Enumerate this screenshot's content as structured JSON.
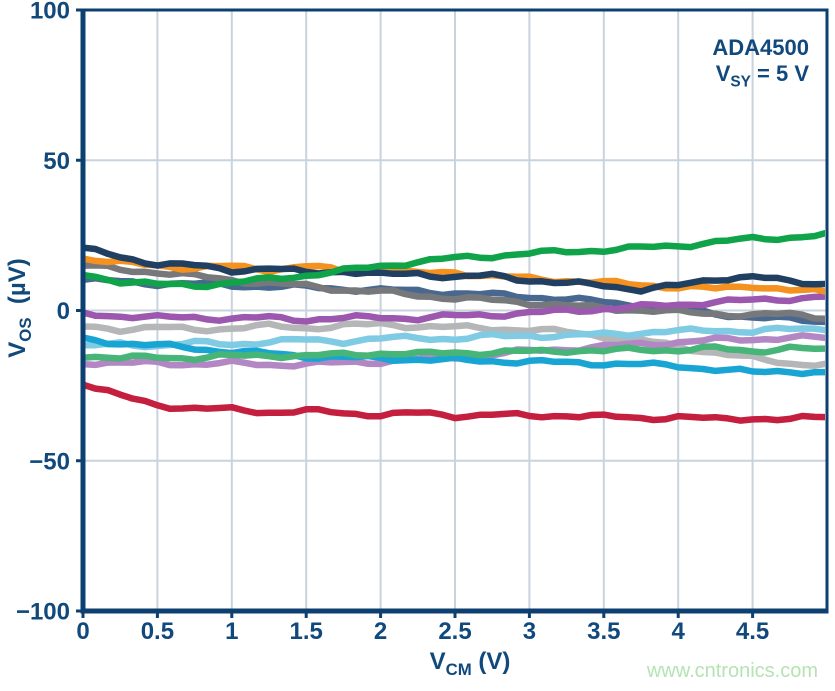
{
  "annotation": {
    "line1": "ADA4500",
    "line2_main": "V",
    "line2_sub": "SY",
    "line2_rest": " = 5 V"
  },
  "watermark": {
    "text": "www.cntronics.com",
    "color": "#b5e3b2"
  },
  "colors": {
    "axis": "#0d3f70",
    "text": "#11497c",
    "grid": "#c8d3de",
    "background": "#ffffff"
  },
  "axes": {
    "x": {
      "label_main": "V",
      "label_sub": "CM",
      "label_rest": " (V)",
      "min": 0,
      "max": 5,
      "tick_values": [
        0,
        0.5,
        1,
        1.5,
        2,
        2.5,
        3,
        3.5,
        4,
        4.5
      ],
      "tick_labels": [
        "0",
        "0.5",
        "1",
        "1.5",
        "2",
        "2.5",
        "3",
        "3.5",
        "4",
        "4.5"
      ],
      "gridline_values": [
        0.5,
        1,
        1.5,
        2,
        2.5,
        3,
        3.5,
        4,
        4.5
      ]
    },
    "y": {
      "label_main": "V",
      "label_sub": "OS",
      "label_rest": " (µV)",
      "min": -100,
      "max": 100,
      "tick_values": [
        100,
        50,
        0,
        -50,
        -100
      ],
      "tick_labels": [
        "100",
        "50",
        "0",
        "−50",
        "−100"
      ],
      "gridline_values": [
        50,
        0,
        -50
      ]
    }
  },
  "chart_data": {
    "type": "line",
    "title": "ADA4500  VSY = 5 V",
    "xlabel": "VCM (V)",
    "ylabel": "VOS (µV)",
    "xlim": [
      0,
      5
    ],
    "ylim": [
      -100,
      100
    ],
    "grid": true,
    "legend": "none",
    "x": [
      0,
      0.25,
      0.5,
      0.75,
      1,
      1.25,
      1.5,
      1.75,
      2,
      2.25,
      2.5,
      2.75,
      3,
      3.25,
      3.5,
      3.75,
      4,
      4.25,
      4.5,
      4.75,
      5
    ],
    "series": [
      {
        "name": "unit-steelblue",
        "color": "#48688f",
        "values": [
          10.2,
          9.6,
          9.0,
          8.8,
          8.4,
          8.0,
          7.8,
          7.2,
          6.8,
          6.4,
          5.8,
          5.2,
          4.6,
          3.8,
          2.8,
          1.6,
          0.4,
          -1.0,
          -2.2,
          -3.0,
          -3.6
        ]
      },
      {
        "name": "unit-silver",
        "color": "#b4b6b8",
        "values": [
          -5.4,
          -6.2,
          -5.6,
          -6.4,
          -5.8,
          -5.2,
          -5.8,
          -5.0,
          -4.6,
          -5.2,
          -5.6,
          -6.0,
          -6.4,
          -7.2,
          -8.5,
          -10.0,
          -12.0,
          -14.0,
          -16.0,
          -17.5,
          -18.0
        ]
      },
      {
        "name": "unit-plum",
        "color": "#b287c4",
        "values": [
          -17.2,
          -17.6,
          -17.4,
          -17.8,
          -17.6,
          -18.0,
          -17.8,
          -17.4,
          -17.0,
          -16.2,
          -15.5,
          -14.5,
          -13.5,
          -12.8,
          -12.0,
          -11.2,
          -10.5,
          -9.8,
          -9.5,
          -9.0,
          -9.2
        ]
      },
      {
        "name": "unit-lightcyan",
        "color": "#7fcbe4",
        "values": [
          -12.0,
          -11.2,
          -11.6,
          -10.8,
          -11.2,
          -10.4,
          -9.8,
          -10.2,
          -9.4,
          -9.0,
          -9.4,
          -8.6,
          -8.2,
          -8.6,
          -7.8,
          -7.4,
          -7.0,
          -6.4,
          -7.0,
          -6.2,
          -5.8
        ]
      },
      {
        "name": "unit-darkcyan",
        "color": "#18a5d4",
        "values": [
          -9.6,
          -10.8,
          -11.6,
          -12.6,
          -13.6,
          -14.4,
          -15.2,
          -15.6,
          -16.0,
          -16.2,
          -16.6,
          -16.8,
          -17.0,
          -17.4,
          -17.6,
          -18.0,
          -18.4,
          -19.6,
          -20.6,
          -20.0,
          -21.0
        ]
      },
      {
        "name": "unit-seagreen",
        "color": "#47b577",
        "values": [
          -15.0,
          -16.0,
          -15.4,
          -15.8,
          -15.2,
          -14.8,
          -15.2,
          -14.6,
          -14.2,
          -14.6,
          -13.8,
          -14.2,
          -13.6,
          -13.2,
          -13.6,
          -12.8,
          -13.2,
          -12.6,
          -13.4,
          -12.6,
          -13.2
        ]
      },
      {
        "name": "unit-gray",
        "color": "#77787b",
        "values": [
          15.0,
          13.6,
          12.8,
          11.4,
          10.2,
          9.0,
          8.2,
          7.0,
          6.2,
          5.0,
          4.2,
          3.4,
          2.6,
          1.6,
          0.8,
          0.2,
          -0.6,
          -1.0,
          -1.6,
          -1.2,
          -2.2
        ]
      },
      {
        "name": "unit-purple",
        "color": "#9c57ae",
        "values": [
          -1.0,
          -1.8,
          -2.4,
          -2.2,
          -2.8,
          -2.4,
          -3.0,
          -2.6,
          -2.2,
          -2.6,
          -1.8,
          -1.4,
          -0.8,
          -0.2,
          0.6,
          1.2,
          2.0,
          2.8,
          3.4,
          4.0,
          4.6
        ]
      },
      {
        "name": "unit-orange",
        "color": "#f5911e",
        "values": [
          17.5,
          15.8,
          15.0,
          14.2,
          14.6,
          13.6,
          14.8,
          13.0,
          13.6,
          12.2,
          12.8,
          11.4,
          10.6,
          10.0,
          9.2,
          8.6,
          7.8,
          7.2,
          8.4,
          6.6,
          6.2
        ]
      },
      {
        "name": "unit-navy",
        "color": "#203f61",
        "values": [
          20.5,
          17.8,
          15.6,
          14.9,
          13.4,
          14.0,
          12.6,
          13.2,
          11.8,
          12.4,
          11.0,
          11.6,
          10.2,
          9.0,
          8.4,
          7.0,
          8.2,
          10.6,
          11.2,
          9.6,
          9.0
        ]
      },
      {
        "name": "unit-green",
        "color": "#0fa44a",
        "values": [
          12.0,
          9.8,
          8.6,
          8.4,
          9.2,
          10.4,
          11.8,
          13.2,
          14.8,
          16.2,
          17.4,
          18.2,
          19.0,
          19.6,
          20.2,
          20.8,
          21.6,
          22.8,
          23.8,
          24.4,
          25.2
        ]
      },
      {
        "name": "unit-red",
        "color": "#c41f3e",
        "values": [
          -24.0,
          -28.5,
          -31.5,
          -32.5,
          -33.0,
          -33.8,
          -33.4,
          -34.2,
          -34.6,
          -34.2,
          -35.0,
          -34.6,
          -35.2,
          -34.8,
          -35.4,
          -35.8,
          -35.4,
          -36.2,
          -35.8,
          -36.4,
          -35.2
        ]
      }
    ]
  }
}
